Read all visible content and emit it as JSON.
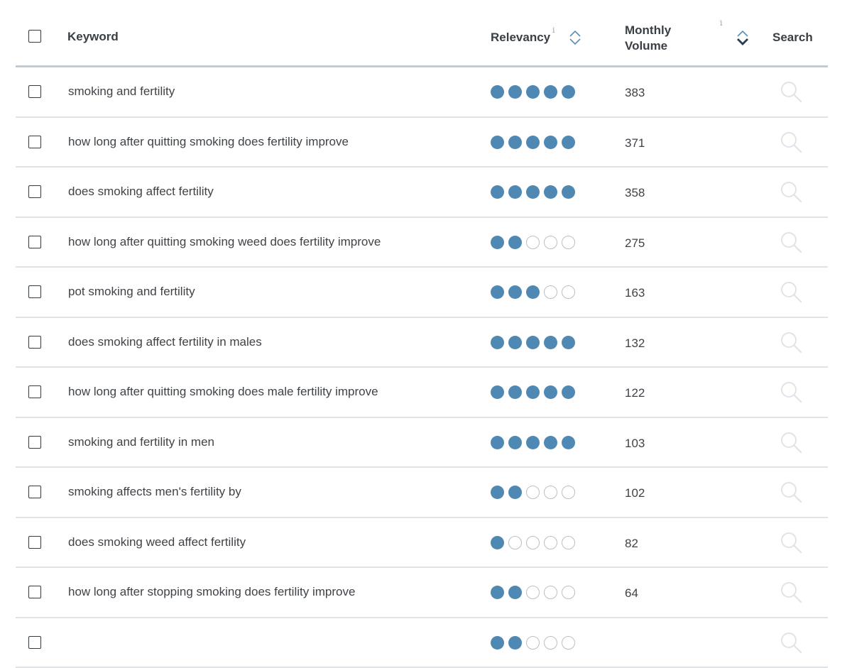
{
  "header": {
    "keyword": "Keyword",
    "relevancy": "Relevancy",
    "info": "i",
    "monthly_volume": "Monthly Volume",
    "search": "Search"
  },
  "colors": {
    "dot_filled": "#4f89b3",
    "dot_empty_border": "#b9c0c6",
    "sort_icon": "#5a8fb8",
    "sort_active": "#2c3e50",
    "search_icon": "#dfe4e8"
  },
  "rows": [
    {
      "keyword": "smoking and fertility",
      "relevancy": 5,
      "volume": "383"
    },
    {
      "keyword": "how long after quitting smoking does fertility improve",
      "relevancy": 5,
      "volume": "371"
    },
    {
      "keyword": "does smoking affect fertility",
      "relevancy": 5,
      "volume": "358"
    },
    {
      "keyword": "how long after quitting smoking weed does fertility improve",
      "relevancy": 2,
      "volume": "275"
    },
    {
      "keyword": "pot smoking and fertility",
      "relevancy": 3,
      "volume": "163"
    },
    {
      "keyword": "does smoking affect fertility in males",
      "relevancy": 5,
      "volume": "132"
    },
    {
      "keyword": "how long after quitting smoking does male fertility improve",
      "relevancy": 5,
      "volume": "122"
    },
    {
      "keyword": "smoking and fertility in men",
      "relevancy": 5,
      "volume": "103"
    },
    {
      "keyword": "smoking affects men's fertility by",
      "relevancy": 2,
      "volume": "102"
    },
    {
      "keyword": "does smoking weed affect fertility",
      "relevancy": 1,
      "volume": "82"
    },
    {
      "keyword": "how long after stopping smoking does fertility improve",
      "relevancy": 2,
      "volume": "64"
    },
    {
      "keyword": "",
      "relevancy": 2,
      "volume": ""
    }
  ]
}
